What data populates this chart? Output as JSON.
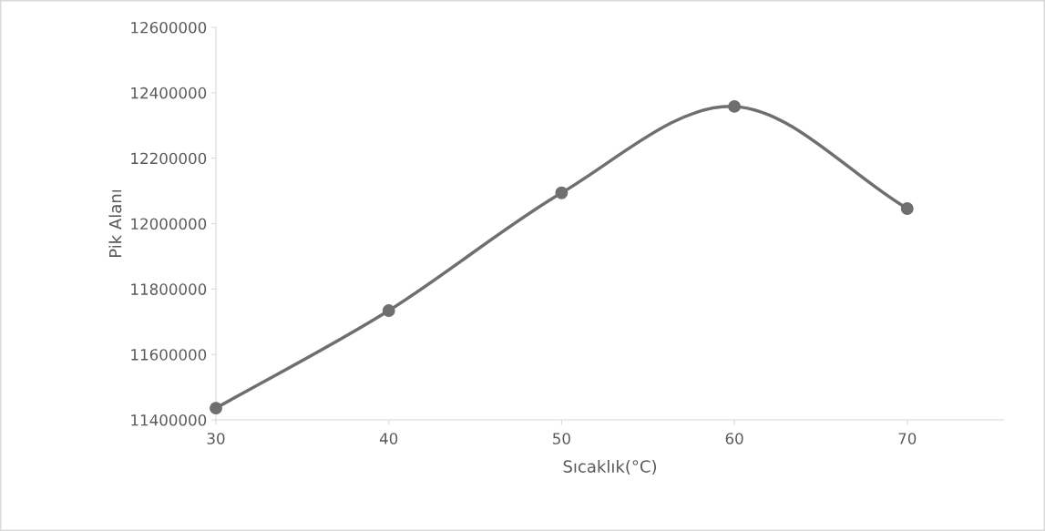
{
  "chart_data": {
    "type": "line",
    "xlabel": "Sıcaklık(°C)",
    "ylabel": "Pik Alanı",
    "x": [
      30,
      40,
      50,
      60,
      70
    ],
    "series": [
      {
        "color": "#6f6f6f",
        "values": [
          11436000,
          11734000,
          12094000,
          12358000,
          12046000
        ]
      }
    ],
    "xlim": [
      30,
      75.6
    ],
    "xticks": [
      30,
      40,
      50,
      60,
      70
    ],
    "ylim": [
      11400000,
      12600000
    ],
    "yticks": [
      11400000,
      11600000,
      11800000,
      12000000,
      12200000,
      12400000,
      12600000
    ],
    "marker": "circle",
    "line_style": "solid",
    "grid": false,
    "legend": false
  }
}
